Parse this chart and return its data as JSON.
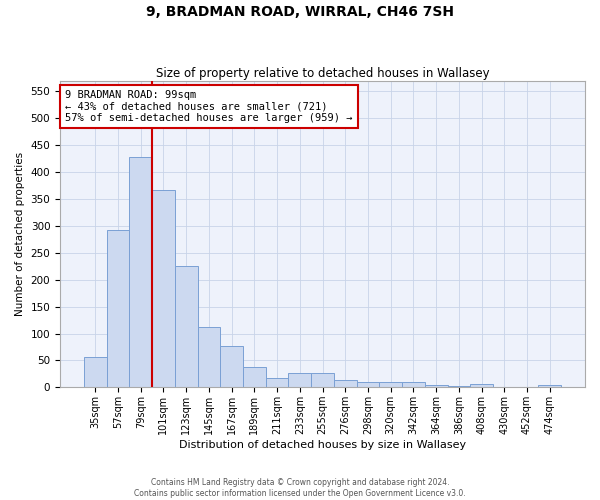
{
  "title": "9, BRADMAN ROAD, WIRRAL, CH46 7SH",
  "subtitle": "Size of property relative to detached houses in Wallasey",
  "xlabel": "Distribution of detached houses by size in Wallasey",
  "ylabel": "Number of detached properties",
  "categories": [
    "35sqm",
    "57sqm",
    "79sqm",
    "101sqm",
    "123sqm",
    "145sqm",
    "167sqm",
    "189sqm",
    "211sqm",
    "233sqm",
    "255sqm",
    "276sqm",
    "298sqm",
    "320sqm",
    "342sqm",
    "364sqm",
    "386sqm",
    "408sqm",
    "430sqm",
    "452sqm",
    "474sqm"
  ],
  "values": [
    57,
    292,
    428,
    367,
    225,
    113,
    76,
    38,
    17,
    27,
    27,
    14,
    9,
    9,
    9,
    5,
    3,
    6,
    0,
    0,
    4
  ],
  "bar_color": "#ccd9f0",
  "bar_edge_color": "#7aa0d4",
  "grid_color": "#c8d4e8",
  "background_color": "#eef2fb",
  "annotation_text": "9 BRADMAN ROAD: 99sqm\n← 43% of detached houses are smaller (721)\n57% of semi-detached houses are larger (959) →",
  "annotation_box_color": "#ffffff",
  "annotation_box_edge_color": "#cc0000",
  "red_line_color": "#cc0000",
  "red_line_x": 2.5,
  "ylim": [
    0,
    570
  ],
  "yticks": [
    0,
    50,
    100,
    150,
    200,
    250,
    300,
    350,
    400,
    450,
    500,
    550
  ],
  "footer_line1": "Contains HM Land Registry data © Crown copyright and database right 2024.",
  "footer_line2": "Contains public sector information licensed under the Open Government Licence v3.0."
}
